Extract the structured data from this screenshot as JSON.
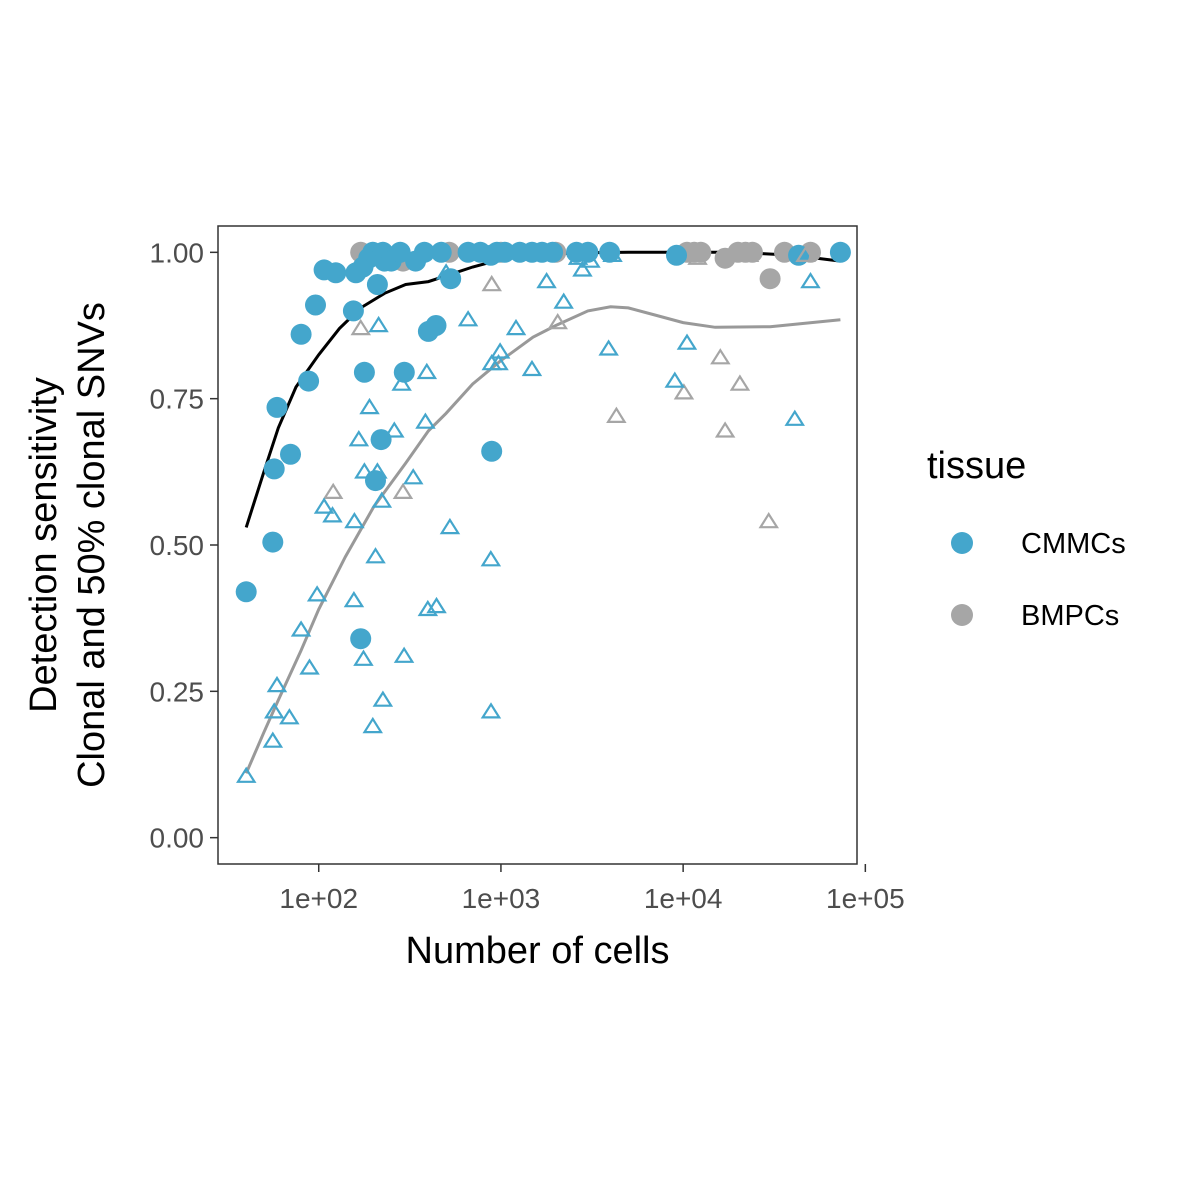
{
  "chart_data": {
    "type": "scatter",
    "xlabel": "Number of cells",
    "ylabel_line1": "Detection sensitivity",
    "ylabel_line2": "Clonal and 50% clonal SNVs",
    "x_scale": "log10",
    "xlim": [
      28,
      90000
    ],
    "ylim": [
      -0.045,
      1.045
    ],
    "x_ticks": [
      100,
      1000,
      10000,
      100000
    ],
    "x_tick_labels": [
      "1e+02",
      "1e+03",
      "1e+04",
      "1e+05"
    ],
    "y_ticks": [
      0,
      0.25,
      0.5,
      0.75,
      1
    ],
    "y_tick_labels": [
      "0.00",
      "0.25",
      "0.50",
      "0.75",
      "1.00"
    ],
    "grid": false,
    "legend": {
      "title": "tissue",
      "position": "right",
      "entries": [
        {
          "label": "CMMCs",
          "color": "#44a6cc"
        },
        {
          "label": "BMPCs",
          "color": "#a6a6a6"
        }
      ]
    },
    "colors": {
      "CMMCs": "#44a6cc",
      "BMPCs": "#a6a6a6",
      "clonal_fit": "#000000",
      "subclonal_fit": "#999999"
    },
    "series": [
      {
        "tissue": "BMPCs",
        "marker": "filled-circle",
        "points": [
          [
            170,
            1.0
          ],
          [
            180,
            0.99
          ],
          [
            200,
            0.995
          ],
          [
            290,
            0.985
          ],
          [
            520,
            1.0
          ],
          [
            1000,
            1.0
          ],
          [
            2000,
            1.0
          ],
          [
            10500,
            1.0
          ],
          [
            11500,
            1.0
          ],
          [
            12500,
            1.0
          ],
          [
            17000,
            0.99
          ],
          [
            20000,
            1.0
          ],
          [
            22000,
            1.0
          ],
          [
            24000,
            1.0
          ],
          [
            30000,
            0.955
          ],
          [
            36000,
            1.0
          ],
          [
            50000,
            1.0
          ]
        ]
      },
      {
        "tissue": "CMMCs",
        "marker": "filled-circle",
        "points": [
          [
            40,
            0.42
          ],
          [
            56,
            0.505
          ],
          [
            57,
            0.63
          ],
          [
            59,
            0.735
          ],
          [
            70,
            0.655
          ],
          [
            80,
            0.86
          ],
          [
            88,
            0.78
          ],
          [
            96,
            0.91
          ],
          [
            107,
            0.97
          ],
          [
            124,
            0.965
          ],
          [
            155,
            0.9
          ],
          [
            160,
            0.965
          ],
          [
            170,
            0.34
          ],
          [
            175,
            0.975
          ],
          [
            178,
            0.795
          ],
          [
            188,
            0.99
          ],
          [
            198,
            1.0
          ],
          [
            205,
            0.61
          ],
          [
            210,
            0.945
          ],
          [
            220,
            0.68
          ],
          [
            225,
            1.0
          ],
          [
            230,
            0.985
          ],
          [
            250,
            0.985
          ],
          [
            280,
            1.0
          ],
          [
            295,
            0.795
          ],
          [
            340,
            0.985
          ],
          [
            380,
            1.0
          ],
          [
            400,
            0.865
          ],
          [
            440,
            0.875
          ],
          [
            470,
            1.0
          ],
          [
            530,
            0.955
          ],
          [
            660,
            1.0
          ],
          [
            770,
            1.0
          ],
          [
            880,
            0.995
          ],
          [
            890,
            0.66
          ],
          [
            950,
            1.0
          ],
          [
            1050,
            1.0
          ],
          [
            1270,
            1.0
          ],
          [
            1480,
            1.0
          ],
          [
            1680,
            1.0
          ],
          [
            1920,
            1.0
          ],
          [
            2600,
            1.0
          ],
          [
            3000,
            1.0
          ],
          [
            3950,
            1.0
          ],
          [
            9200,
            0.995
          ],
          [
            43000,
            0.995
          ],
          [
            73000,
            1.0
          ]
        ]
      },
      {
        "tissue": "BMPCs",
        "marker": "open-triangle",
        "points": [
          [
            120,
            0.59
          ],
          [
            170,
            0.87
          ],
          [
            290,
            0.59
          ],
          [
            890,
            0.945
          ],
          [
            2050,
            0.88
          ],
          [
            4300,
            0.72
          ],
          [
            10100,
            0.76
          ],
          [
            12000,
            0.99
          ],
          [
            16000,
            0.82
          ],
          [
            17000,
            0.695
          ],
          [
            20500,
            0.775
          ],
          [
            23000,
            0.995
          ],
          [
            29500,
            0.54
          ],
          [
            47000,
            0.995
          ]
        ]
      },
      {
        "tissue": "CMMCs",
        "marker": "open-triangle",
        "points": [
          [
            40,
            0.105
          ],
          [
            56,
            0.165
          ],
          [
            57,
            0.215
          ],
          [
            59,
            0.26
          ],
          [
            69,
            0.205
          ],
          [
            80,
            0.355
          ],
          [
            89,
            0.29
          ],
          [
            98,
            0.415
          ],
          [
            107,
            0.565
          ],
          [
            119,
            0.55
          ],
          [
            156,
            0.405
          ],
          [
            157,
            0.54
          ],
          [
            166,
            0.68
          ],
          [
            176,
            0.305
          ],
          [
            178,
            0.625
          ],
          [
            190,
            0.735
          ],
          [
            198,
            0.19
          ],
          [
            205,
            0.48
          ],
          [
            210,
            0.625
          ],
          [
            213,
            0.875
          ],
          [
            222,
            0.575
          ],
          [
            225,
            0.235
          ],
          [
            260,
            0.695
          ],
          [
            285,
            0.775
          ],
          [
            294,
            0.31
          ],
          [
            330,
            0.615
          ],
          [
            385,
            0.71
          ],
          [
            392,
            0.795
          ],
          [
            397,
            0.39
          ],
          [
            443,
            0.395
          ],
          [
            500,
            0.965
          ],
          [
            525,
            0.53
          ],
          [
            660,
            0.885
          ],
          [
            880,
            0.475
          ],
          [
            882,
            0.215
          ],
          [
            890,
            0.81
          ],
          [
            970,
            0.81
          ],
          [
            990,
            0.83
          ],
          [
            1210,
            0.87
          ],
          [
            1480,
            0.8
          ],
          [
            1780,
            0.95
          ],
          [
            2210,
            0.915
          ],
          [
            2650,
            0.99
          ],
          [
            2800,
            0.97
          ],
          [
            3100,
            0.985
          ],
          [
            3900,
            0.835
          ],
          [
            4100,
            0.995
          ],
          [
            9000,
            0.78
          ],
          [
            10500,
            0.845
          ],
          [
            41000,
            0.715
          ],
          [
            50000,
            0.95
          ]
        ]
      }
    ],
    "fit_lines": [
      {
        "name": "clonal",
        "color": "#000000",
        "points": [
          [
            40,
            0.53
          ],
          [
            50,
            0.625
          ],
          [
            60,
            0.7
          ],
          [
            75,
            0.77
          ],
          [
            100,
            0.825
          ],
          [
            130,
            0.87
          ],
          [
            170,
            0.905
          ],
          [
            230,
            0.93
          ],
          [
            300,
            0.945
          ],
          [
            400,
            0.95
          ],
          [
            500,
            0.96
          ],
          [
            700,
            0.975
          ],
          [
            1000,
            0.988
          ],
          [
            1500,
            0.995
          ],
          [
            2500,
            0.999
          ],
          [
            5000,
            1.0
          ],
          [
            10000,
            1.0
          ],
          [
            20000,
            1.0
          ],
          [
            40000,
            0.995
          ],
          [
            73000,
            0.985
          ]
        ]
      },
      {
        "name": "subclonal",
        "color": "#999999",
        "points": [
          [
            40,
            0.11
          ],
          [
            50,
            0.18
          ],
          [
            60,
            0.235
          ],
          [
            80,
            0.32
          ],
          [
            100,
            0.39
          ],
          [
            140,
            0.48
          ],
          [
            200,
            0.565
          ],
          [
            300,
            0.64
          ],
          [
            400,
            0.695
          ],
          [
            500,
            0.725
          ],
          [
            700,
            0.775
          ],
          [
            1000,
            0.815
          ],
          [
            1500,
            0.855
          ],
          [
            2000,
            0.875
          ],
          [
            3000,
            0.9
          ],
          [
            4000,
            0.907
          ],
          [
            5000,
            0.905
          ],
          [
            7000,
            0.893
          ],
          [
            10000,
            0.88
          ],
          [
            15000,
            0.872
          ],
          [
            30000,
            0.873
          ],
          [
            73000,
            0.885
          ]
        ]
      }
    ]
  }
}
